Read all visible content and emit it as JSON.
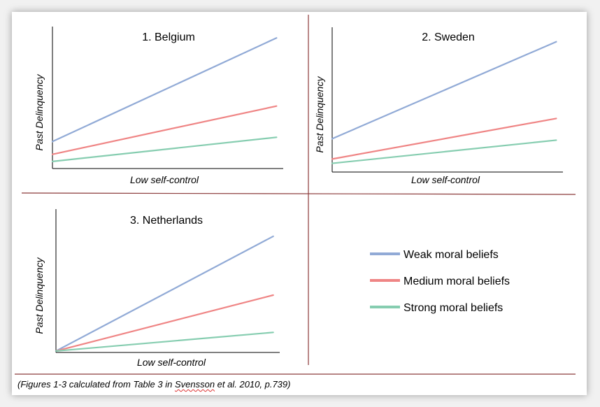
{
  "caption": {
    "prefix": "(Figures 1-3 calculated from Table 3 in ",
    "author": "Svensson",
    "suffix": " et al.  2010, p.739)"
  },
  "colors": {
    "weak": "#91aad6",
    "medium": "#ef8585",
    "strong": "#86cdb0",
    "divider": "#8b3a3a",
    "axis": "#000000"
  },
  "legend": [
    {
      "key": "weak",
      "label": "Weak moral beliefs"
    },
    {
      "key": "medium",
      "label": "Medium moral beliefs"
    },
    {
      "key": "strong",
      "label": "Strong moral beliefs"
    }
  ],
  "chart_data": [
    {
      "type": "line",
      "title": "1. Belgium",
      "xlabel": "Low self-control",
      "ylabel": "Past Delinquency",
      "x": [
        0,
        1
      ],
      "xlim": [
        0,
        1.03
      ],
      "ylim": [
        0,
        1
      ],
      "grid": false,
      "series": [
        {
          "name": "Weak moral beliefs",
          "key": "weak",
          "values": [
            0.19,
            0.92
          ]
        },
        {
          "name": "Medium moral beliefs",
          "key": "medium",
          "values": [
            0.1,
            0.44
          ]
        },
        {
          "name": "Strong moral beliefs",
          "key": "strong",
          "values": [
            0.05,
            0.22
          ]
        }
      ]
    },
    {
      "type": "line",
      "title": "2. Sweden",
      "xlabel": "Low self-control",
      "ylabel": "Past Delinquency",
      "x": [
        0,
        1
      ],
      "xlim": [
        0,
        1.03
      ],
      "ylim": [
        0,
        1
      ],
      "grid": false,
      "series": [
        {
          "name": "Weak moral beliefs",
          "key": "weak",
          "values": [
            0.23,
            0.9
          ]
        },
        {
          "name": "Medium moral beliefs",
          "key": "medium",
          "values": [
            0.09,
            0.37
          ]
        },
        {
          "name": "Strong moral beliefs",
          "key": "strong",
          "values": [
            0.06,
            0.22
          ]
        }
      ]
    },
    {
      "type": "line",
      "title": "3. Netherlands",
      "xlabel": "Low self-control",
      "ylabel": "Past Delinquency",
      "x": [
        0,
        1
      ],
      "xlim": [
        0,
        1.03
      ],
      "ylim": [
        0,
        1
      ],
      "grid": false,
      "series": [
        {
          "name": "Weak moral beliefs",
          "key": "weak",
          "values": [
            0.01,
            0.81
          ]
        },
        {
          "name": "Medium moral beliefs",
          "key": "medium",
          "values": [
            0.01,
            0.4
          ]
        },
        {
          "name": "Strong moral beliefs",
          "key": "strong",
          "values": [
            0.01,
            0.14
          ]
        }
      ]
    }
  ]
}
